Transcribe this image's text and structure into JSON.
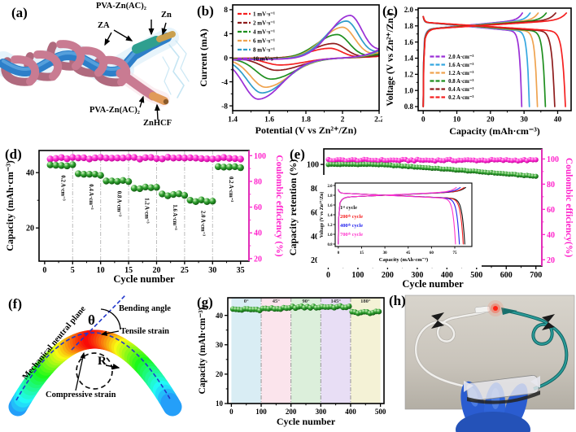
{
  "figure": {
    "panels": {
      "a": "(a)",
      "b": "(b)",
      "c": "(c)",
      "d": "(d)",
      "e": "(e)",
      "f": "(f)",
      "g": "(g)",
      "h": "(h)"
    }
  },
  "panel_a": {
    "labels": {
      "top_gel": "PVA-Zn(AC)₂",
      "zn": "Zn",
      "za": "ZA",
      "bottom_gel": "PVA-Zn(AC)₂",
      "znhcf": "ZnHCF"
    }
  },
  "panel_f": {
    "labels": {
      "neutral_plane": "Mechanical neutral plane",
      "bending_angle": "Bending angle",
      "theta": "θ",
      "tensile": "Tensile strain",
      "radius": "R",
      "compressive": "Compressive strain"
    }
  },
  "chart_data": [
    {
      "id": "b",
      "type": "line",
      "subtype": "cyclic-voltammetry",
      "xlabel": "Potential (V vs Zn²⁺/Zn)",
      "ylabel": "Current (mA)",
      "xlim": [
        1.4,
        2.2
      ],
      "ylim": [
        -8.8,
        8.8
      ],
      "xticks": [
        1.4,
        1.6,
        1.8,
        2.0,
        2.2
      ],
      "yticks": [
        -8,
        -4,
        0,
        4,
        8
      ],
      "legend_position": "top-left",
      "series": [
        {
          "name": "1 mV·s⁻¹",
          "color": "#f52020",
          "a_peak_V": 1.93,
          "a_peak_mA": 1.6,
          "c_peak_V": 1.66,
          "c_peak_mA": 1.15
        },
        {
          "name": "2 mV·s⁻¹",
          "color": "#8f1d1d",
          "a_peak_V": 1.95,
          "a_peak_mA": 2.4,
          "c_peak_V": 1.64,
          "c_peak_mA": 2.0
        },
        {
          "name": "4 mV·s⁻¹",
          "color": "#1f8f1f",
          "a_peak_V": 1.97,
          "a_peak_mA": 3.9,
          "c_peak_V": 1.61,
          "c_peak_mA": 3.4
        },
        {
          "name": "6 mV·s⁻¹",
          "color": "#efa34f",
          "a_peak_V": 2.0,
          "a_peak_mA": 5.1,
          "c_peak_V": 1.58,
          "c_peak_mA": 4.7
        },
        {
          "name": "8 mV·s⁻¹",
          "color": "#2f9cc9",
          "a_peak_V": 2.02,
          "a_peak_mA": 6.1,
          "c_peak_V": 1.56,
          "c_peak_mA": 5.6
        },
        {
          "name": "10 mV·s⁻¹",
          "color": "#9a2fd6",
          "a_peak_V": 2.04,
          "a_peak_mA": 7.0,
          "c_peak_V": 1.54,
          "c_peak_mA": 6.6
        }
      ]
    },
    {
      "id": "c",
      "type": "line",
      "subtype": "galvanostatic-charge-discharge",
      "xlabel": "Capacity (mAh·cm⁻³)",
      "ylabel": "Voltage (V vs Zn²⁺/Zn )",
      "xlim": [
        -1.5,
        44
      ],
      "ylim": [
        0.75,
        2.02
      ],
      "xticks": [
        0,
        10,
        20,
        30,
        40
      ],
      "yticks": [
        0.8,
        1.0,
        1.2,
        1.4,
        1.6,
        1.8,
        2.0
      ],
      "legend_position": "lower-left",
      "series": [
        {
          "name": "2.0 A·cm⁻³",
          "color": "#9a2fd6",
          "capacity": 29.5
        },
        {
          "name": "1.6 A·cm⁻³",
          "color": "#35a7e0",
          "capacity": 31.8
        },
        {
          "name": "1.2 A·cm⁻³",
          "color": "#efa34f",
          "capacity": 34.2
        },
        {
          "name": "0.8 A·cm⁻³",
          "color": "#1f8f1f",
          "capacity": 36.6
        },
        {
          "name": "0.4 A·cm⁻³",
          "color": "#8f1d1d",
          "capacity": 39.4
        },
        {
          "name": "0.2 A·cm⁻³",
          "color": "#f52020",
          "capacity": 42.6
        }
      ]
    },
    {
      "id": "d",
      "type": "scatter",
      "subtype": "rate-capability",
      "xlabel": "Cycle number",
      "ylabel": "Capacity (mAh·cm⁻³)",
      "ylabel_right": "Coulombic efficiency (%)",
      "xlim": [
        -1,
        36.5
      ],
      "xticks": [
        0,
        5,
        10,
        15,
        20,
        25,
        30,
        35
      ],
      "ylim": [
        8,
        48
      ],
      "yticks": [
        20,
        40
      ],
      "ylim_right": [
        18,
        104
      ],
      "yticks_right": [
        20,
        40,
        60,
        80,
        100
      ],
      "gridlines_x": [
        5,
        10,
        15,
        20,
        25,
        30
      ],
      "capacity_color": "#1f8f1f",
      "ce_color": "#ff22cc",
      "ce_value": 98,
      "groups": [
        {
          "label": "0.2 A·cm⁻³",
          "start": 1,
          "end": 5,
          "capacity": 42.6
        },
        {
          "label": "0.4 A·cm⁻³",
          "start": 6,
          "end": 10,
          "capacity": 39.4
        },
        {
          "label": "0.8 A·cm⁻³",
          "start": 11,
          "end": 15,
          "capacity": 36.9
        },
        {
          "label": "1.2 A·cm⁻³",
          "start": 16,
          "end": 20,
          "capacity": 34.4
        },
        {
          "label": "1.6 A·cm⁻³",
          "start": 21,
          "end": 25,
          "capacity": 32.0
        },
        {
          "label": "2.0 A·cm⁻³",
          "start": 26,
          "end": 30,
          "capacity": 29.8
        },
        {
          "label": "0.2 A·cm⁻³",
          "start": 31,
          "end": 35,
          "capacity": 42.1
        }
      ]
    },
    {
      "id": "e",
      "type": "scatter",
      "subtype": "long-term-cycling",
      "xlabel": "Cycle number",
      "ylabel": "Capacity retention (%)",
      "ylabel_right": "Coulombic efficiency(%)",
      "xlim": [
        -15,
        720
      ],
      "xticks": [
        0,
        100,
        200,
        300,
        400,
        500,
        600,
        700
      ],
      "ylim": [
        15,
        113
      ],
      "yticks": [
        20,
        40,
        60,
        80,
        100
      ],
      "ylim_right": [
        15,
        108
      ],
      "yticks_right": [
        20,
        40,
        60,
        80,
        100
      ],
      "retention_color": "#1f8f1f",
      "ce_color": "#ff22cc",
      "cycles": 700,
      "point_every": 10,
      "retention_start": 100,
      "retention_end": 90,
      "ce_value": 99
    },
    {
      "id": "e_inset",
      "type": "line",
      "subtype": "galvanostatic-charge-discharge",
      "xlabel": "Capacity (mAh·cm⁻³)",
      "ylabel": "Voltage (V vs Zn²⁺/Zn)",
      "xlim": [
        -2,
        86
      ],
      "ylim": [
        0.75,
        2.05
      ],
      "xticks": [
        0,
        15,
        30,
        45,
        60,
        75
      ],
      "yticks": [
        0.8,
        1.0,
        1.2,
        1.4,
        1.6,
        1.8,
        2.0
      ],
      "series": [
        {
          "name": "1ˢᵗ cycle",
          "color": "#111111",
          "capacity": 82
        },
        {
          "name": "200ᵗʰ cycle",
          "color": "#f52020",
          "capacity": 81
        },
        {
          "name": "400ᵗʰ cycle",
          "color": "#2222ee",
          "capacity": 78.5
        },
        {
          "name": "700ᵗʰ cycle",
          "color": "#ff33cc",
          "capacity": 76
        }
      ]
    },
    {
      "id": "g",
      "type": "scatter",
      "subtype": "bending-cycling",
      "xlabel": "Cycle number",
      "ylabel": "Capacity (mAh·cm⁻³)",
      "xlim": [
        -12,
        512
      ],
      "xticks": [
        0,
        100,
        200,
        300,
        400,
        500
      ],
      "ylim": [
        10,
        46
      ],
      "yticks": [
        10,
        20,
        30,
        40
      ],
      "gridlines_x": [
        100,
        200,
        300,
        400
      ],
      "point_color": "#1f8f1f",
      "points_per_band": 10,
      "bands": [
        {
          "label": "0°",
          "from": 0,
          "to": 100,
          "color": "#d9edf4",
          "capacity": 42.0
        },
        {
          "label": "45°",
          "from": 100,
          "to": 200,
          "color": "#fbe4ec",
          "capacity": 42.3
        },
        {
          "label": "90°",
          "from": 200,
          "to": 300,
          "color": "#dcefdb",
          "capacity": 42.8
        },
        {
          "label": "145°",
          "from": 300,
          "to": 400,
          "color": "#e8def5",
          "capacity": 42.9
        },
        {
          "label": "180°",
          "from": 400,
          "to": 500,
          "color": "#f4f2d6",
          "capacity": 41.0
        }
      ]
    }
  ]
}
